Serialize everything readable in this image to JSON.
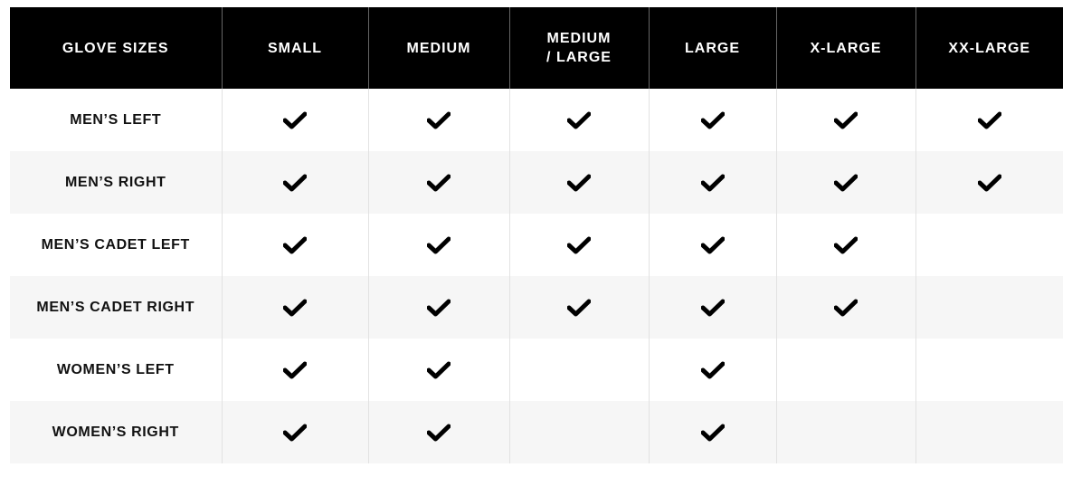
{
  "table": {
    "headers": [
      "GLOVE SIZES",
      "SMALL",
      "MEDIUM",
      "MEDIUM / LARGE",
      "LARGE",
      "X-LARGE",
      "XX-LARGE"
    ],
    "rows": [
      {
        "label": "MEN’S LEFT",
        "sizes": [
          true,
          true,
          true,
          true,
          true,
          true
        ]
      },
      {
        "label": "MEN’S RIGHT",
        "sizes": [
          true,
          true,
          true,
          true,
          true,
          true
        ]
      },
      {
        "label": "MEN’S CADET LEFT",
        "sizes": [
          true,
          true,
          true,
          true,
          true,
          false
        ]
      },
      {
        "label": "MEN’S CADET RIGHT",
        "sizes": [
          true,
          true,
          true,
          true,
          true,
          false
        ]
      },
      {
        "label": "WOMEN’S LEFT",
        "sizes": [
          true,
          true,
          false,
          true,
          false,
          false
        ]
      },
      {
        "label": "WOMEN’S RIGHT",
        "sizes": [
          true,
          true,
          false,
          true,
          false,
          false
        ]
      }
    ],
    "check_icon": "checkmark-icon",
    "header_bg": "#000000",
    "stripe_bg": "#f6f6f6"
  }
}
